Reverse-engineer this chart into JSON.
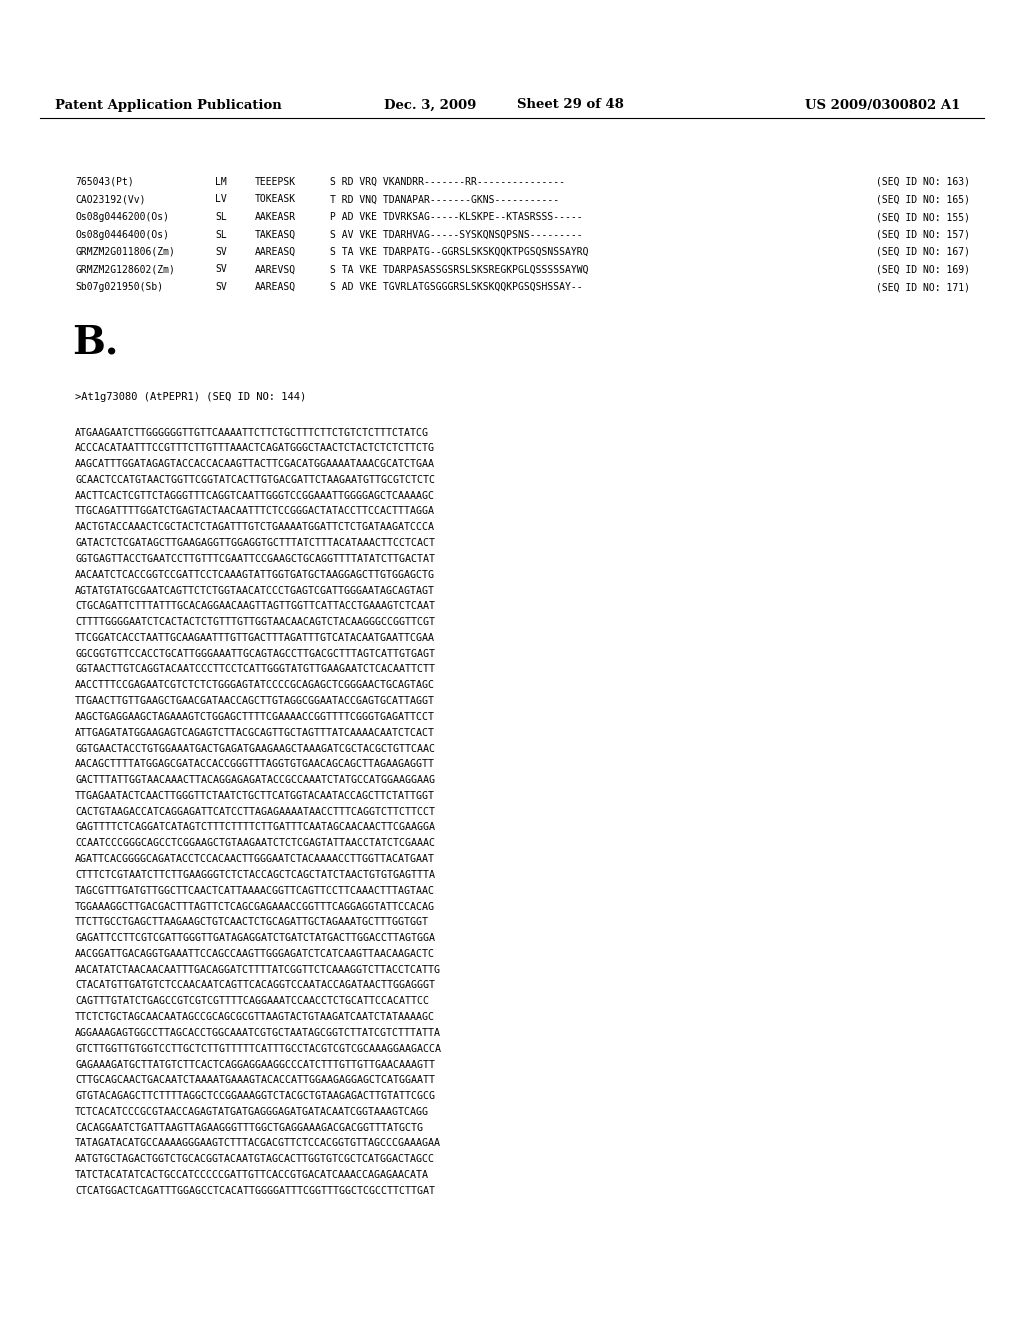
{
  "header_left": "Patent Application Publication",
  "header_middle": "Dec. 3, 2009   Sheet 29 of 48",
  "header_right": "US 2009/0300802 A1",
  "section_b_label": "B.",
  "gene_header": ">At1g73080 (AtPEPR1) (SEQ ID NO: 144)",
  "background_color": "#ffffff",
  "text_color": "#000000",
  "alignment_data": [
    [
      "765043(Pt)",
      "LM",
      "TEEEPSK",
      "S RD VRQ VKANDRR-------RR---------------",
      "(SEQ ID NO: 163)"
    ],
    [
      "CAO23192(Vv)",
      "LV",
      "TOKEASK",
      "T RD VNQ TDANAPAR-------GKNS-----------",
      "(SEQ ID NO: 165)"
    ],
    [
      "Os08g0446200(Os)",
      "SL",
      "AAKEASR",
      "P AD VKE TDVRKSAG-----KLSKPE--KTASRSSS-----",
      "(SEQ ID NO: 155)"
    ],
    [
      "Os08g0446400(Os)",
      "SL",
      "TAKEASQ",
      "S AV VKE TDARHVAG-----SYSKQNSQPSNS---------",
      "(SEQ ID NO: 157)"
    ],
    [
      "GRMZM2G011806(Zm)",
      "SV",
      "AAREASQ",
      "S TA VKE TDARPATG--GGRSLSKSKQQKTPGSQSNSSAYRQ",
      "(SEQ ID NO: 167)"
    ],
    [
      "GRMZM2G128602(Zm)",
      "SV",
      "AAREVSQ",
      "S TA VKE TDARPASASSGSRSLSKSREGKPGLQSSSSSAYWQ",
      "(SEQ ID NO: 169)"
    ],
    [
      "Sb07g021950(Sb)",
      "SV",
      "AAREASQ",
      "S AD VKE TGVRLATGSGGGRSLSKSKQQKPGSQSHSSAY--",
      "(SEQ ID NO: 171)"
    ]
  ],
  "sequence_lines": [
    "ATGAAGAATCTTGGGGGGTTGTTCAAAATTCTTCTGCTTTCTTCTGTCTCTTTCTATCG",
    "ACCCACATAATTTCCGTTTCTTGTTTAAACTCAGATGGGCTAACTCTACTCTCTCTTCTG",
    "AAGCATTTGGATAGAGTACCACCACAAGTTACTTCGACATGGAAAATAAACGCATCTGAA",
    "GCAACTCCATGTAACTGGTTCGGTATCACTTGTGACGATTCTAAGAATGTTGCGTCTCTC",
    "AACTTCACTCGTTCTAGGGTTTCAGGTCAATTGGGTCCGGAAATTGGGGAGCTCAAAAGC",
    "TTGCAGATTTTGGATCTGAGTACTAACAATTTCTCCGGGACTATACCTTCCACTTTAGGA",
    "AACTGTACCAAACTCGCTACTCTAGATTTGTCTGAAAATGGATTCTCTGATAAGATCCCA",
    "GATACTCTCGATAGCTTGAAGAGGTTGGAGGTGCTTTATCTTTACATAAACTTCCTCACT",
    "GGTGAGTTACCTGAATCCTTGTTTCGAATTCCGAAGCTGCAGGTTTTATATCTTGACTAT",
    "AACAATCTCACCGGTCCGATTCCTCAAAGTATTGGTGATGCTAAGGAGCTTGTGGAGCTG",
    "AGTATGTATGCGAATCAGTTCTCTGGTAACATCCCTGAGTCGATTGGGAATAGCAGTAGT",
    "CTGCAGATTCTTTATTTGCACAGGAACAAGTTAGTTGGTTCATTACCTGAAAGTCTCAAT",
    "CTTTTGGGGAATCTCACTACTCTGTTTGTTGGTAACAACAGTCTACAAGGGCCGGTTCGT",
    "TTCGGATCACCTAATTGCAAGAATTTGTTGACTTTAGATTTGTCATACAATGAATTCGAA",
    "GGCGGTGTTCCACCTGCATTGGGAAATTGCAGTAGCCTTGACGCTTTAGTCATTGTGAGT",
    "GGTAACTTGTCAGGTACAATCCCTTCCTCATTGGGTATGTTGAAGAATCTCACAATTCTT",
    "AACCTTTCCGAGAATCGTCTCTCTGGGAGTATCCCCGCAGAGCTCGGGAACTGCAGTAGC",
    "TTGAACTTGTTGAAGCTGAACGATAACCAGCTTGTAGGCGGAATACCGAGTGCATTAGGT",
    "AAGCTGAGGAAGCTAGAAAGTCTGGAGCTTTTCGAAAACCGGTTTTCGGGTGAGATTCCT",
    "ATTGAGATATGGAAGAGTCAGAGTCTTACGCAGTTGCTAGTTTATCAAAACAATCTCACT",
    "GGTGAACTACCTGTGGAAATGACTGAGATGAAGAAGCTAAAGATCGCTACGCTGTTCAAC",
    "AACAGCTTTTATGGAGCGATACCACCGGGTTTAGGTGTGAACAGCAGCTTAGAAGAGGTT",
    "GACTTTATTGGTAACAAACTTACAGGAGAGATACCGCCAAATCTATGCCATGGAAGGAAG",
    "TTGAGAATACTCAACTTGGGTTCTAATCTGCTTCATGGTACAATACCAGCTTCTATTGGT",
    "CACTGTAAGACCATCAGGAGATTCATCCTTAGAGAAAATAACCTTTCAGGTCTTCTTCCT",
    "GAGTTTTCTCAGGATCATAGTCTTTCTTTTCTTGATTTCAATAGCAACAACTTCGAAGGA",
    "CCAATCCCGGGCAGCCTCGGAAGCTGTAAGAATCTCTCGAGTATTAACCTATCTCGAAAC",
    "AGATTCACGGGGCAGATACCTCCACAACTTGGGAATCTACAAAACCTTGGTTACATGAAT",
    "CTTTCTCGTAATCTTCTTGAAGGGTCTCTACCAGCTCAGCTATCTAACTGTGTGAGTTTA",
    "TAGCGTTTGATGTTGGCTTCAACTCATTAAAACGGTTCAGTTCCTTCAAACTTTAGTAAC",
    "TGGAAAGGCTTGACGACTTTAGTTCTCAGCGAGAAACCGGTTTCAGGAGGTATTCCACAG",
    "TTCTTGCCTGAGCTTAAGAAGCTGTCAACTCTGCAGATTGCTAGAAATGCTTTGGTGGT",
    "GAGATTCCTTCGTCGATTGGGTTGATAGAGGATCTGATCTATGACTTGGACCTTAGTGGA",
    "AACGGATTGACAGGTGAAATTCCAGCCAAGTTGGGAGATCTCATCAAGTTAACAAGACTC",
    "AACATATCTAACAACAATTTGACAGGATCTTTTATCGGTTCTCAAAGGTCTTACCTCATTG",
    "CTACATGTTGATGTCTCCAACAATCAGTTCACAGGTCCAATACCAGATAACTTGGAGGGT",
    "CAGTTTGTATCTGAGCCGTCGTCGTTTTCAGGAAATCCAACCTCTGCATTCCACATTCC",
    "TTCTCTGCTAGCAACAATAGCCGCAGCGCGTTAAGTACTGTAAGATCAATCTATAAAAGC",
    "AGGAAAGAGTGGCCTTAGCACCTGGCAAATCGTGCTAATAGCGGTCTTATCGTCTTTATTA",
    "GTCTTGGTTGTGGTCCTTGCTCTTGTTTTTCATTTGCCTACGTCGTCGCAAAGGAAGACCA",
    "GAGAAAGATGCTTATGTCTTCACTCAGGAGGAAGGCCCATCTTTGTTGTTGAACAAAGTT",
    "CTTGCAGCAACTGACAATCTAAAATGAAAGTACACCATTGGAAGAGGAGCTCATGGAATT",
    "GTGTACAGAGCTTCTTTTAGGCTCCGGAAAGGTCTACGCTGTAAGAGACTTGTATTCGCG",
    "TCTCACATCCCGCGTAACCAGAGTATGATGAGGGAGATGATACAATCGGTAAAGTCAGG",
    "CACAGGAATCTGATTAAGTTAGAAGGGTTTGGCTGAGGAAAGACGACGGTTTATGCTG",
    "TATAGATACATGCCAAAAGGGAAGTCTTTACGACGTTCTCCACGGTGTTAGCCCGAAAGAA",
    "AATGTGCTAGACTGGTCTGCACGGTACAATGTAGCACTTGGTGTCGCTCATGGACTAGCC",
    "TATCTACATATCACTGCCATCCCCCGATTGTTCACCGTGACATCAAACCAGAGAACATA",
    "CTCATGGACTCAGATTTGGAGCCTCACATTGGGGATTTCGGTTTGGCTCGCCTTCTTGAT"
  ]
}
